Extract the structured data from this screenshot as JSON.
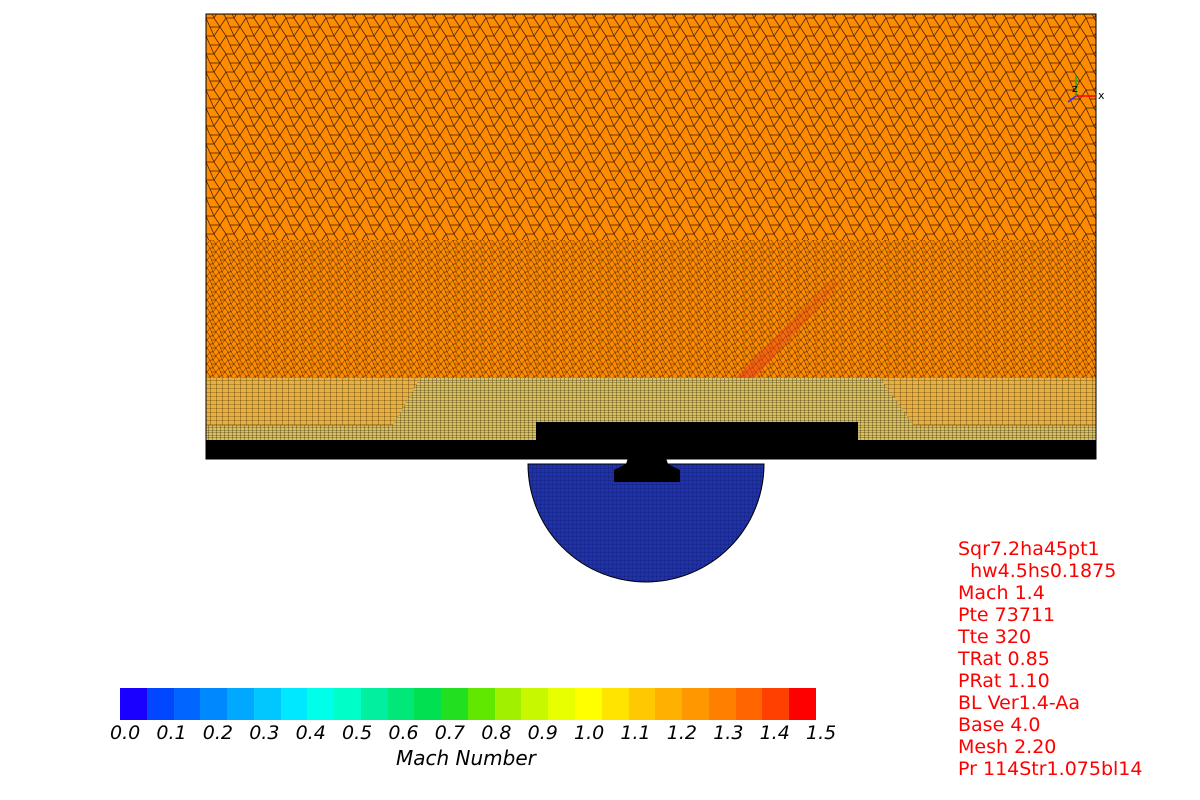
{
  "colorbar": {
    "title": "Mach Number",
    "ticks": [
      "0.0",
      "0.1",
      "0.2",
      "0.3",
      "0.4",
      "0.5",
      "0.6",
      "0.7",
      "0.8",
      "0.9",
      "1.0",
      "1.1",
      "1.2",
      "1.3",
      "1.4",
      "1.5"
    ],
    "colors": [
      "#1a00ff",
      "#0047ff",
      "#0066ff",
      "#0088ff",
      "#00a8ff",
      "#00c8ff",
      "#00e8ff",
      "#00ffe8",
      "#00ffc8",
      "#00f0a0",
      "#00e878",
      "#00e050",
      "#22e020",
      "#60e800",
      "#a0f000",
      "#c8f800",
      "#e8ff00",
      "#ffff00",
      "#ffe400",
      "#ffc800",
      "#ffb000",
      "#ff9800",
      "#ff8000",
      "#ff6600",
      "#ff4000",
      "#ff0000"
    ]
  },
  "parameters": {
    "lines": [
      "Sqr7.2ha45pt1",
      "  hw4.5hs0.1875",
      "Mach 1.4",
      "Pte 73711",
      "Tte 320",
      "TRat 0.85",
      "PRat 1.10",
      "BL Ver1.4-Aa",
      "Base 4.0",
      "Mesh 2.20",
      "Pr 114Str1.075bl14"
    ]
  },
  "axes_triad": {
    "x_label": "x",
    "z_label": "z"
  },
  "field_colors": {
    "freestream": "#ff8c00",
    "shock": "#e85a10",
    "boundary_layer": "#e8c85a",
    "nozzle_plenum": "#1a2a8c",
    "wall": "#000000"
  }
}
